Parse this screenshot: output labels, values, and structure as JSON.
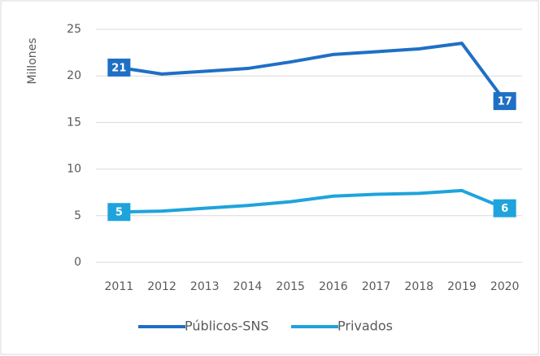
{
  "chart_data": {
    "type": "line",
    "y_label": "Millones",
    "categories": [
      "2011",
      "2012",
      "2013",
      "2014",
      "2015",
      "2016",
      "2017",
      "2018",
      "2019",
      "2020"
    ],
    "series": [
      {
        "name": "Públicos-SNS",
        "color": "#1f6fc5",
        "values": [
          20.9,
          20.2,
          20.5,
          20.8,
          21.5,
          22.3,
          22.6,
          22.9,
          23.5,
          17.3
        ],
        "value_labels": [
          "21",
          null,
          null,
          null,
          null,
          null,
          null,
          null,
          null,
          "17"
        ]
      },
      {
        "name": "Privados",
        "color": "#1fa3dc",
        "values": [
          5.4,
          5.5,
          5.8,
          6.1,
          6.5,
          7.1,
          7.3,
          7.4,
          7.7,
          5.8
        ],
        "value_labels": [
          "5",
          null,
          null,
          null,
          null,
          null,
          null,
          null,
          null,
          "6"
        ]
      }
    ],
    "ylim": [
      0,
      25
    ],
    "yticks": [
      0,
      5,
      10,
      15,
      20,
      25
    ],
    "grid": true,
    "legend": "bottom"
  }
}
